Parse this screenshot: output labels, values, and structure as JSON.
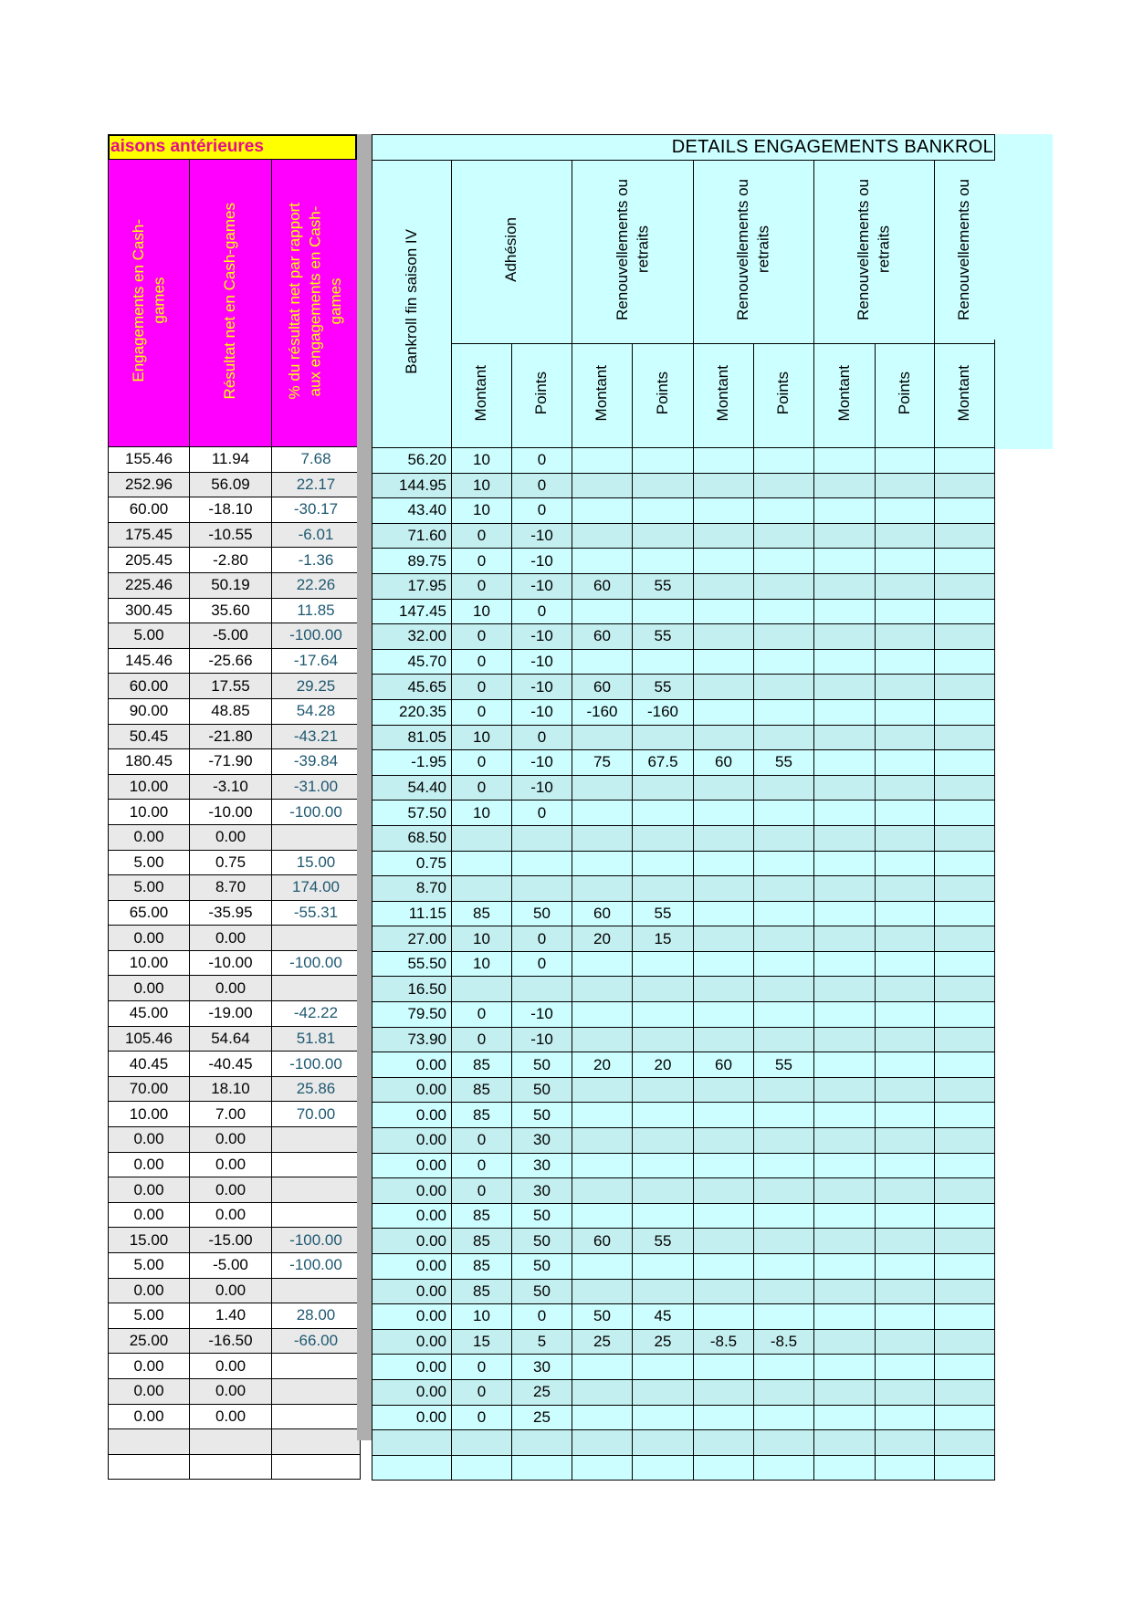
{
  "left_table": {
    "title": "aisons antérieures",
    "columns": [
      "Engagements en Cash-\ngames",
      "Résultat net en Cash-games",
      "% du résultat net par rapport\naux engagements en Cash-\ngames"
    ],
    "rows": [
      [
        "155.46",
        "11.94",
        "7.68"
      ],
      [
        "252.96",
        "56.09",
        "22.17"
      ],
      [
        "60.00",
        "-18.10",
        "-30.17"
      ],
      [
        "175.45",
        "-10.55",
        "-6.01"
      ],
      [
        "205.45",
        "-2.80",
        "-1.36"
      ],
      [
        "225.46",
        "50.19",
        "22.26"
      ],
      [
        "300.45",
        "35.60",
        "11.85"
      ],
      [
        "5.00",
        "-5.00",
        "-100.00"
      ],
      [
        "145.46",
        "-25.66",
        "-17.64"
      ],
      [
        "60.00",
        "17.55",
        "29.25"
      ],
      [
        "90.00",
        "48.85",
        "54.28"
      ],
      [
        "50.45",
        "-21.80",
        "-43.21"
      ],
      [
        "180.45",
        "-71.90",
        "-39.84"
      ],
      [
        "10.00",
        "-3.10",
        "-31.00"
      ],
      [
        "10.00",
        "-10.00",
        "-100.00"
      ],
      [
        "0.00",
        "0.00",
        ""
      ],
      [
        "5.00",
        "0.75",
        "15.00"
      ],
      [
        "5.00",
        "8.70",
        "174.00"
      ],
      [
        "65.00",
        "-35.95",
        "-55.31"
      ],
      [
        "0.00",
        "0.00",
        ""
      ],
      [
        "10.00",
        "-10.00",
        "-100.00"
      ],
      [
        "0.00",
        "0.00",
        ""
      ],
      [
        "45.00",
        "-19.00",
        "-42.22"
      ],
      [
        "105.46",
        "54.64",
        "51.81"
      ],
      [
        "40.45",
        "-40.45",
        "-100.00"
      ],
      [
        "70.00",
        "18.10",
        "25.86"
      ],
      [
        "10.00",
        "7.00",
        "70.00"
      ],
      [
        "0.00",
        "0.00",
        ""
      ],
      [
        "0.00",
        "0.00",
        ""
      ],
      [
        "0.00",
        "0.00",
        ""
      ],
      [
        "0.00",
        "0.00",
        ""
      ],
      [
        "15.00",
        "-15.00",
        "-100.00"
      ],
      [
        "5.00",
        "-5.00",
        "-100.00"
      ],
      [
        "0.00",
        "0.00",
        ""
      ],
      [
        "5.00",
        "1.40",
        "28.00"
      ],
      [
        "25.00",
        "-16.50",
        "-66.00"
      ],
      [
        "0.00",
        "0.00",
        ""
      ],
      [
        "0.00",
        "0.00",
        ""
      ],
      [
        "0.00",
        "0.00",
        ""
      ],
      [
        "",
        "",
        ""
      ],
      [
        "",
        "",
        ""
      ]
    ]
  },
  "right_table": {
    "title": "DETAILS ENGAGEMENTS BANKROL",
    "bankroll_header": "Bankroll fin saison IV",
    "groups": [
      {
        "label": "Adhésion"
      },
      {
        "label": "Renouvellements ou\nretraits"
      },
      {
        "label": "Renouvellements ou\nretraits"
      },
      {
        "label": "Renouvellements ou\nretraits"
      },
      {
        "label": "Renouvellements ou"
      }
    ],
    "sub_headers": [
      "Montant",
      "Points",
      "Montant",
      "Points",
      "Montant",
      "Points",
      "Montant",
      "Points",
      "Montant"
    ],
    "rows": [
      [
        "56.20",
        "10",
        "0",
        "",
        "",
        "",
        "",
        "",
        "",
        ""
      ],
      [
        "144.95",
        "10",
        "0",
        "",
        "",
        "",
        "",
        "",
        "",
        ""
      ],
      [
        "43.40",
        "10",
        "0",
        "",
        "",
        "",
        "",
        "",
        "",
        ""
      ],
      [
        "71.60",
        "0",
        "-10",
        "",
        "",
        "",
        "",
        "",
        "",
        ""
      ],
      [
        "89.75",
        "0",
        "-10",
        "",
        "",
        "",
        "",
        "",
        "",
        ""
      ],
      [
        "17.95",
        "0",
        "-10",
        "60",
        "55",
        "",
        "",
        "",
        "",
        ""
      ],
      [
        "147.45",
        "10",
        "0",
        "",
        "",
        "",
        "",
        "",
        "",
        ""
      ],
      [
        "32.00",
        "0",
        "-10",
        "60",
        "55",
        "",
        "",
        "",
        "",
        ""
      ],
      [
        "45.70",
        "0",
        "-10",
        "",
        "",
        "",
        "",
        "",
        "",
        ""
      ],
      [
        "45.65",
        "0",
        "-10",
        "60",
        "55",
        "",
        "",
        "",
        "",
        ""
      ],
      [
        "220.35",
        "0",
        "-10",
        "-160",
        "-160",
        "",
        "",
        "",
        "",
        ""
      ],
      [
        "81.05",
        "10",
        "0",
        "",
        "",
        "",
        "",
        "",
        "",
        ""
      ],
      [
        "-1.95",
        "0",
        "-10",
        "75",
        "67.5",
        "60",
        "55",
        "",
        "",
        ""
      ],
      [
        "54.40",
        "0",
        "-10",
        "",
        "",
        "",
        "",
        "",
        "",
        ""
      ],
      [
        "57.50",
        "10",
        "0",
        "",
        "",
        "",
        "",
        "",
        "",
        ""
      ],
      [
        "68.50",
        "",
        "",
        "",
        "",
        "",
        "",
        "",
        "",
        ""
      ],
      [
        "0.75",
        "",
        "",
        "",
        "",
        "",
        "",
        "",
        "",
        ""
      ],
      [
        "8.70",
        "",
        "",
        "",
        "",
        "",
        "",
        "",
        "",
        ""
      ],
      [
        "11.15",
        "85",
        "50",
        "60",
        "55",
        "",
        "",
        "",
        "",
        ""
      ],
      [
        "27.00",
        "10",
        "0",
        "20",
        "15",
        "",
        "",
        "",
        "",
        ""
      ],
      [
        "55.50",
        "10",
        "0",
        "",
        "",
        "",
        "",
        "",
        "",
        ""
      ],
      [
        "16.50",
        "",
        "",
        "",
        "",
        "",
        "",
        "",
        "",
        ""
      ],
      [
        "79.50",
        "0",
        "-10",
        "",
        "",
        "",
        "",
        "",
        "",
        ""
      ],
      [
        "73.90",
        "0",
        "-10",
        "",
        "",
        "",
        "",
        "",
        "",
        ""
      ],
      [
        "0.00",
        "85",
        "50",
        "20",
        "20",
        "60",
        "55",
        "",
        "",
        ""
      ],
      [
        "0.00",
        "85",
        "50",
        "",
        "",
        "",
        "",
        "",
        "",
        ""
      ],
      [
        "0.00",
        "85",
        "50",
        "",
        "",
        "",
        "",
        "",
        "",
        ""
      ],
      [
        "0.00",
        "0",
        "30",
        "",
        "",
        "",
        "",
        "",
        "",
        ""
      ],
      [
        "0.00",
        "0",
        "30",
        "",
        "",
        "",
        "",
        "",
        "",
        ""
      ],
      [
        "0.00",
        "0",
        "30",
        "",
        "",
        "",
        "",
        "",
        "",
        ""
      ],
      [
        "0.00",
        "85",
        "50",
        "",
        "",
        "",
        "",
        "",
        "",
        ""
      ],
      [
        "0.00",
        "85",
        "50",
        "60",
        "55",
        "",
        "",
        "",
        "",
        ""
      ],
      [
        "0.00",
        "85",
        "50",
        "",
        "",
        "",
        "",
        "",
        "",
        ""
      ],
      [
        "0.00",
        "85",
        "50",
        "",
        "",
        "",
        "",
        "",
        "",
        ""
      ],
      [
        "0.00",
        "10",
        "0",
        "50",
        "45",
        "",
        "",
        "",
        "",
        ""
      ],
      [
        "0.00",
        "15",
        "5",
        "25",
        "25",
        "-8.5",
        "-8.5",
        "",
        "",
        ""
      ],
      [
        "0.00",
        "0",
        "30",
        "",
        "",
        "",
        "",
        "",
        "",
        ""
      ],
      [
        "0.00",
        "0",
        "25",
        "",
        "",
        "",
        "",
        "",
        "",
        ""
      ],
      [
        "0.00",
        "0",
        "25",
        "",
        "",
        "",
        "",
        "",
        "",
        ""
      ],
      [
        "",
        "",
        "",
        "",
        "",
        "",
        "",
        "",
        "",
        ""
      ],
      [
        "",
        "",
        "",
        "",
        "",
        "",
        "",
        "",
        "",
        ""
      ]
    ]
  },
  "colors": {
    "magenta_header": "#FF00FF",
    "yellow_title": "#FFFF00",
    "title_text": "#E60C8C",
    "header_text": "#FFFF00",
    "cyan_header": "#CCFFFF",
    "cyan_row_light": "#CCFEFF",
    "cyan_row_dark": "#C4EFF0",
    "gray_row": "#E9E9E9",
    "divider_gray": "#AEAEAE",
    "percent_text": "#1F5971"
  }
}
